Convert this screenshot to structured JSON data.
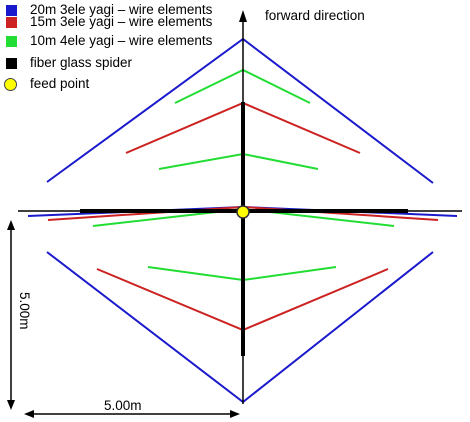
{
  "legend": {
    "items": [
      {
        "label": "20m 3ele yagi – wire elements",
        "color": "#1a1acc",
        "marker": "square"
      },
      {
        "label": "15m 3ele yagi – wire elements",
        "color": "#cc2222",
        "marker": "square"
      },
      {
        "label": "10m 4ele yagi – wire elements",
        "color": "#22dd33",
        "marker": "square"
      },
      {
        "label": "fiber glass spider",
        "color": "#000000",
        "marker": "square"
      },
      {
        "label": "feed point",
        "color": "#ffff00",
        "marker": "circle"
      }
    ]
  },
  "direction_label": "forward direction",
  "dimensions": {
    "height_label": "5.00m",
    "width_label": "5.00m"
  },
  "colors": {
    "band_20m": "#1a1acc",
    "band_15m": "#cc2222",
    "band_10m": "#22dd33",
    "spider": "#000000",
    "feed_point": "#ffff00"
  }
}
